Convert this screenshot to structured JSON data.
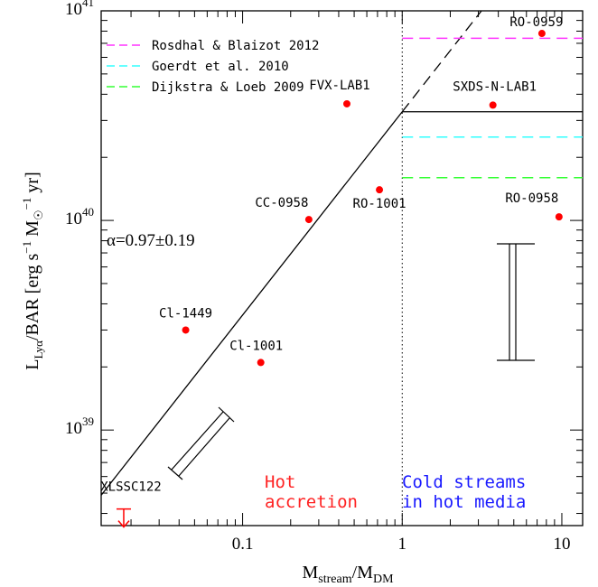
{
  "chart_data": {
    "type": "scatter",
    "xlabel_main": "M",
    "xlabel_sub1": "stream",
    "xlabel_mid": "/M",
    "xlabel_sub2": "DM",
    "ylabel_pre": "L",
    "ylabel_sub": "Lyα",
    "ylabel_post": "/BAR [erg s",
    "ylabel_sup1": "−1",
    "ylabel_mid": " M",
    "ylabel_sun": "☉",
    "ylabel_sup2": "−1",
    "ylabel_end": " yr]",
    "x_scale": "log",
    "y_scale": "log",
    "xlim": [
      0.013,
      13.5
    ],
    "ylim": [
      3.5e+38,
      1e+41
    ],
    "x_ticks": [
      {
        "v": 0.1,
        "label": "0.1"
      },
      {
        "v": 1,
        "label": "1"
      },
      {
        "v": 10,
        "label": "10"
      }
    ],
    "y_ticks": [
      {
        "v": 1e+39,
        "base": "10",
        "exp": "39"
      },
      {
        "v": 1e+40,
        "base": "10",
        "exp": "40"
      },
      {
        "v": 1e+41,
        "base": "10",
        "exp": "41"
      }
    ],
    "points": [
      {
        "name": "RO-0959",
        "x": 7.5,
        "y": 7.8e+40
      },
      {
        "name": "FVX-LAB1",
        "x": 0.45,
        "y": 3.6e+40
      },
      {
        "name": "SXDS-N-LAB1",
        "x": 3.7,
        "y": 3.55e+40
      },
      {
        "name": "RO-1001",
        "x": 0.72,
        "y": 1.4e+40
      },
      {
        "name": "CC-0958",
        "x": 0.26,
        "y": 1.01e+40
      },
      {
        "name": "RO-0958",
        "x": 9.6,
        "y": 1.04e+40
      },
      {
        "name": "Cl-1449",
        "x": 0.044,
        "y": 3e+39
      },
      {
        "name": "Cl-1001",
        "x": 0.13,
        "y": 2.1e+39
      }
    ],
    "upper_limit": {
      "name": "XLSSC122",
      "x": 0.018,
      "y": 4.2e+38
    },
    "fit_annotation": "α=0.97±0.19",
    "fit_line": {
      "slope": 0.97,
      "y_at_x1": 3.3e+40
    },
    "vertical_divider_x": 1,
    "hline_solid": 3.3e+40,
    "models": [
      {
        "name": "Rosdhal & Blaizot 2012",
        "color": "#ff33ff",
        "y": 7.4e+40
      },
      {
        "name": "Goerdt et al. 2010",
        "color": "#33ffff",
        "y": 2.5e+40
      },
      {
        "name": "Dijkstra & Loeb 2009",
        "color": "#33ff33",
        "y": 1.6e+40
      }
    ],
    "regions": [
      {
        "line1": "Hot",
        "line2": "accretion",
        "color": "#ff2222"
      },
      {
        "line1": "Cold streams",
        "line2": "in hot media",
        "color": "#1a1aff"
      }
    ],
    "point_color": "#ff0000"
  }
}
